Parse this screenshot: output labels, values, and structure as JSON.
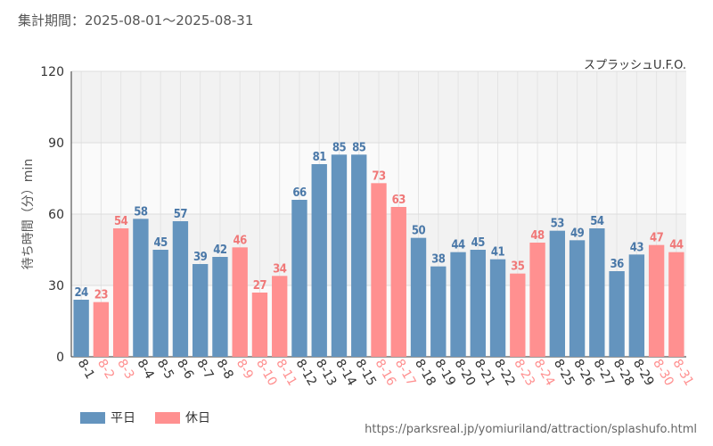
{
  "header": {
    "period_label": "集計期間：",
    "period_value": "2025-08-01～2025-08-31"
  },
  "attraction_name": "スプラッシュU.F.O.",
  "source_url": "https://parksreal.jp/yomiuriland/attraction/splashufo.html",
  "legend": {
    "weekday": "平日",
    "holiday": "休日"
  },
  "colors": {
    "weekday": "#6494be",
    "holiday": "#ff9090",
    "weekday_label": "#4a78a8",
    "holiday_label": "#f07878"
  },
  "chart_data": {
    "type": "bar",
    "ylabel": "待ち時間（分）min",
    "xlabel": "",
    "ylim": [
      0,
      120
    ],
    "yticks": [
      0,
      30,
      60,
      90,
      120
    ],
    "grid": true,
    "legend_position": "bottom-left",
    "categories": [
      "8-1",
      "8-2",
      "8-3",
      "8-4",
      "8-5",
      "8-6",
      "8-7",
      "8-8",
      "8-9",
      "8-10",
      "8-11",
      "8-12",
      "8-13",
      "8-14",
      "8-15",
      "8-16",
      "8-17",
      "8-18",
      "8-19",
      "8-20",
      "8-21",
      "8-22",
      "8-23",
      "8-24",
      "8-25",
      "8-26",
      "8-27",
      "8-28",
      "8-29",
      "8-30",
      "8-31"
    ],
    "values": [
      24,
      23,
      54,
      58,
      45,
      57,
      39,
      42,
      46,
      27,
      34,
      66,
      81,
      85,
      85,
      73,
      63,
      50,
      38,
      44,
      45,
      41,
      35,
      48,
      53,
      49,
      54,
      36,
      43,
      47,
      44
    ],
    "day_type": [
      "weekday",
      "holiday",
      "holiday",
      "weekday",
      "weekday",
      "weekday",
      "weekday",
      "weekday",
      "holiday",
      "holiday",
      "holiday",
      "weekday",
      "weekday",
      "weekday",
      "weekday",
      "holiday",
      "holiday",
      "weekday",
      "weekday",
      "weekday",
      "weekday",
      "weekday",
      "holiday",
      "holiday",
      "weekday",
      "weekday",
      "weekday",
      "weekday",
      "weekday",
      "holiday",
      "holiday"
    ]
  }
}
